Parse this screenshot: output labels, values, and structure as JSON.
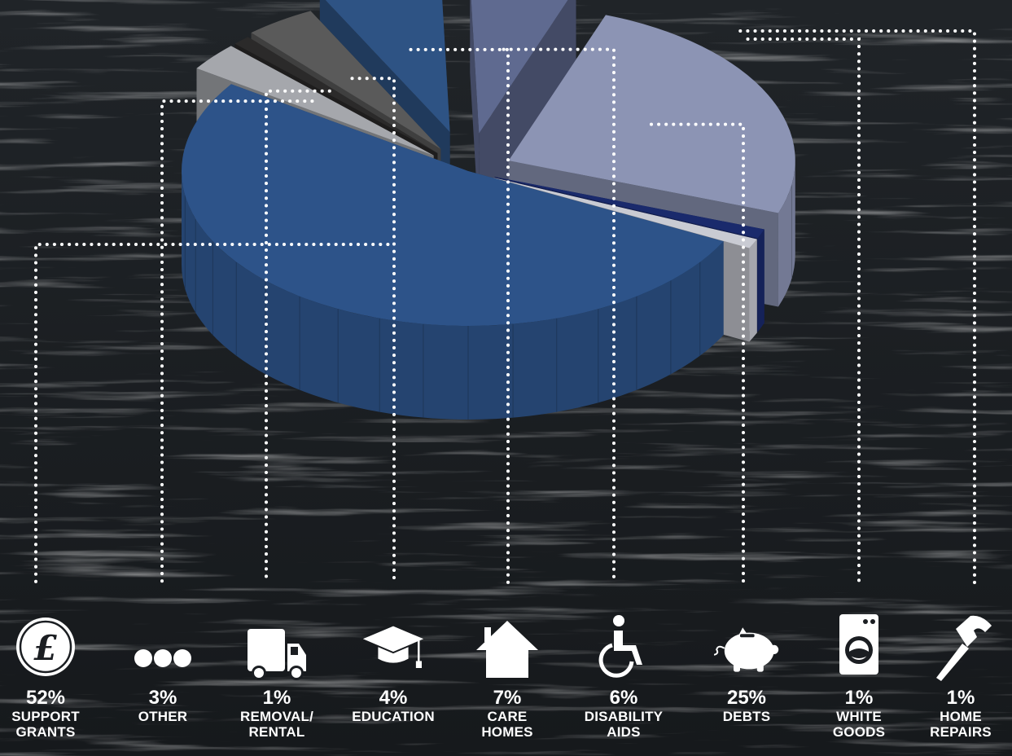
{
  "colors": {
    "support_grants": "#2d5389",
    "other": "#a5a7ac",
    "removal_rental": "#2b2a2a",
    "education": "#5a5a5a",
    "care_homes": "#2e5384",
    "disability_aids": "#5f6a90",
    "debts": "#8c94b4",
    "white_goods": "#1a2a6c",
    "home_repairs": "#c9cbd3",
    "text": "#ffffff",
    "leader": "#ffffff"
  },
  "chart_data": {
    "type": "pie",
    "style": "3d-exploded",
    "slices": [
      {
        "key": "support_grants",
        "value": 52,
        "pct_text": "52%",
        "label": "SUPPORT\nGRANTS",
        "icon": "pound-coin-icon"
      },
      {
        "key": "other",
        "value": 3,
        "pct_text": "3%",
        "label": "OTHER",
        "icon": "ellipsis-icon"
      },
      {
        "key": "removal_rental",
        "value": 1,
        "pct_text": "1%",
        "label": "REMOVAL/\nRENTAL",
        "icon": "truck-icon"
      },
      {
        "key": "education",
        "value": 4,
        "pct_text": "4%",
        "label": "EDUCATION",
        "icon": "graduation-cap-icon"
      },
      {
        "key": "care_homes",
        "value": 7,
        "pct_text": "7%",
        "label": "CARE\nHOMES",
        "icon": "house-icon"
      },
      {
        "key": "disability_aids",
        "value": 6,
        "pct_text": "6%",
        "label": "DISABILITY\nAIDS",
        "icon": "wheelchair-icon"
      },
      {
        "key": "debts",
        "value": 25,
        "pct_text": "25%",
        "label": "DEBTS",
        "icon": "piggy-bank-icon"
      },
      {
        "key": "white_goods",
        "value": 1,
        "pct_text": "1%",
        "label": "WHITE\nGOODS",
        "icon": "washing-machine-icon"
      },
      {
        "key": "home_repairs",
        "value": 1,
        "pct_text": "1%",
        "label": "HOME\nREPAIRS",
        "icon": "hammer-icon"
      }
    ]
  }
}
